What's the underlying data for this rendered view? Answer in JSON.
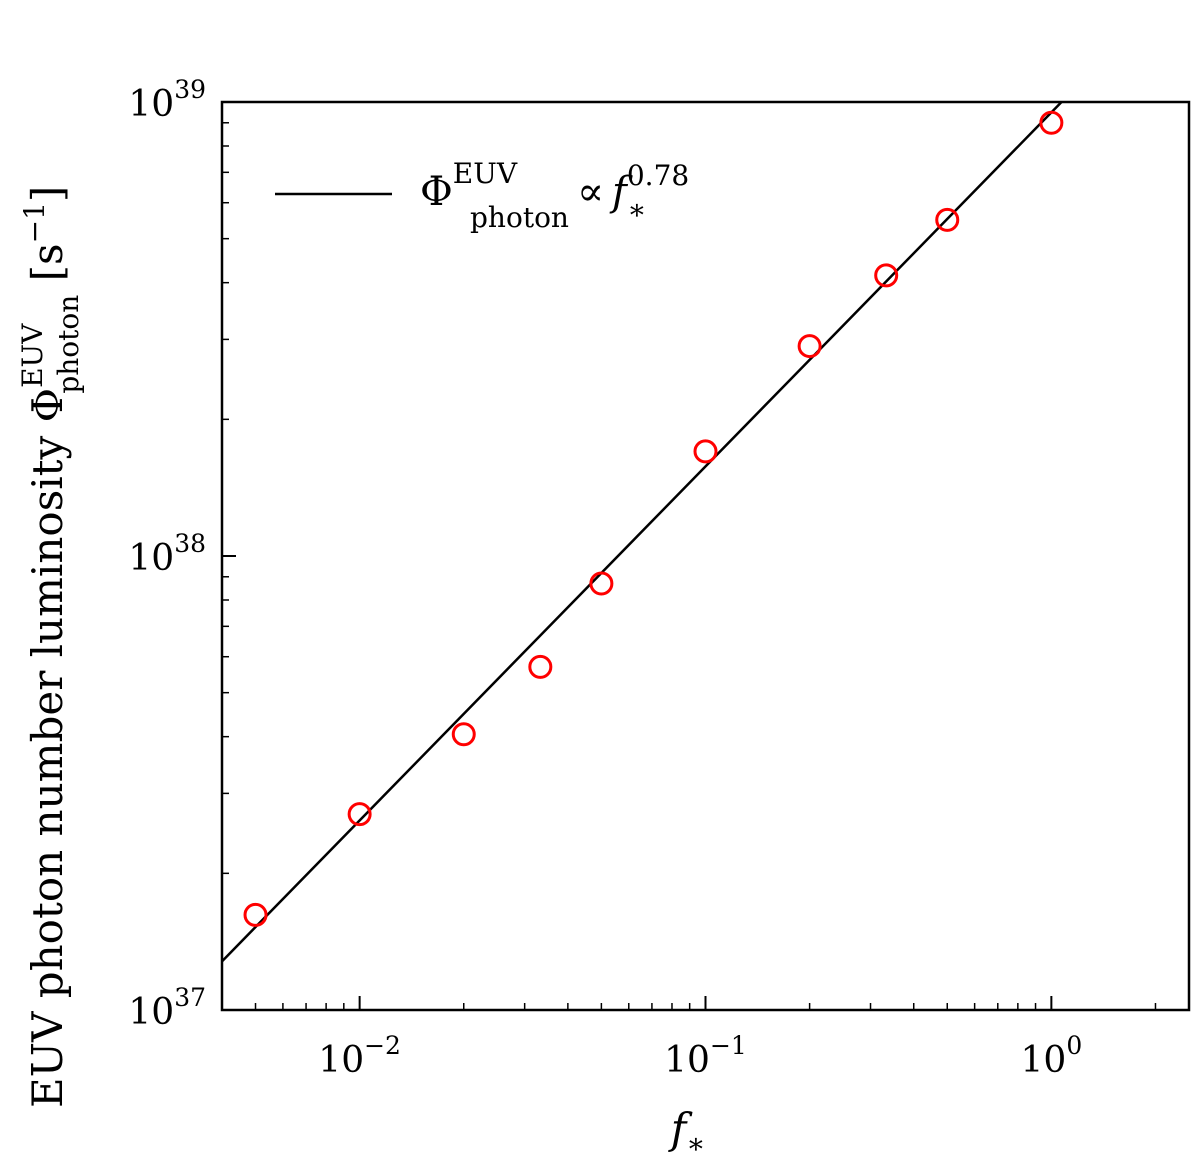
{
  "chart_data": {
    "type": "scatter",
    "xscale": "log",
    "yscale": "log",
    "xlim": [
      0.004,
      2.5
    ],
    "ylim": [
      1e+37,
      1e+39
    ],
    "grid": false,
    "legend_position": "upper-left",
    "xlabel": "f_*",
    "ylabel": "EUV photon number luminosity Φ_photon^EUV [s^-1]",
    "xticks": [
      {
        "value": 0.01,
        "base": "10",
        "exp": "−2"
      },
      {
        "value": 0.1,
        "base": "10",
        "exp": "−1"
      },
      {
        "value": 1,
        "base": "10",
        "exp": "0"
      }
    ],
    "yticks": [
      {
        "value": 1e+37,
        "base": "10",
        "exp": "37"
      },
      {
        "value": 1e+38,
        "base": "10",
        "exp": "38"
      },
      {
        "value": 1e+39,
        "base": "10",
        "exp": "39"
      }
    ],
    "series": [
      {
        "kind": "line",
        "name": "Φ_photon^EUV ∝ f_*^0.78",
        "color": "#000000",
        "x": [
          0.004,
          1.07
        ],
        "y": [
          1.28e+37,
          1e+39
        ]
      },
      {
        "kind": "scatter",
        "marker": "open-circle",
        "color": "#ff0000",
        "x": [
          0.005,
          0.01,
          0.02,
          0.0333,
          0.05,
          0.1,
          0.2,
          0.333,
          0.5,
          1.0
        ],
        "y": [
          1.62e+37,
          2.7e+37,
          4.05e+37,
          5.7e+37,
          8.7e+37,
          1.7e+38,
          2.9e+38,
          4.15e+38,
          5.5e+38,
          9e+38
        ]
      }
    ],
    "legend": {
      "symbol": "Φ",
      "sub": "photon",
      "sup": "EUV",
      "prop": "∝",
      "var": "f",
      "var_sub": "∗",
      "var_sup": "0.78"
    },
    "xlabel_parts": {
      "main": "f",
      "sub": "∗"
    },
    "ylabel_parts": {
      "prefix": "EUV photon number luminosity ",
      "symbol": "Φ",
      "sub": "photon",
      "sup": "EUV",
      "unit_open": "  [s",
      "unit_sup": "−1",
      "unit_close": "]"
    }
  }
}
